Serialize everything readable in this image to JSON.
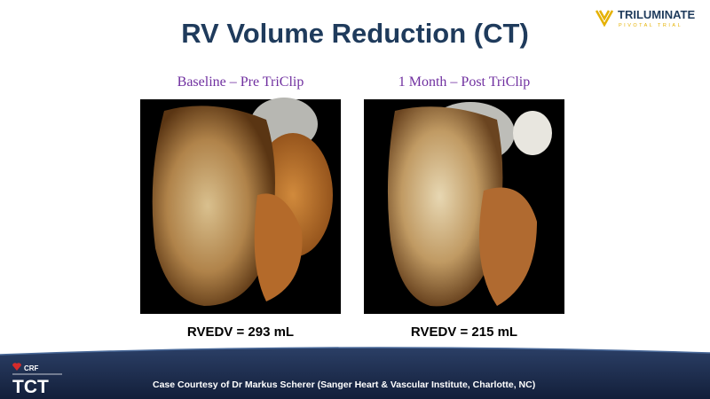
{
  "header": {
    "title": "RV Volume Reduction (CT)",
    "logo": {
      "name": "TRILUMINATE",
      "tagline": "PIVOTAL TRIAL"
    }
  },
  "panels": [
    {
      "label": "Baseline – Pre TriClip",
      "caption": "RVEDV = 293 mL"
    },
    {
      "label": "1 Month – Post TriClip",
      "caption": "RVEDV = 215 mL"
    }
  ],
  "footer": {
    "brand": "CRF",
    "event": "TCT",
    "credit": "Case Courtesy of Dr Markus Scherer (Sanger Heart & Vascular Institute, Charlotte, NC)"
  }
}
